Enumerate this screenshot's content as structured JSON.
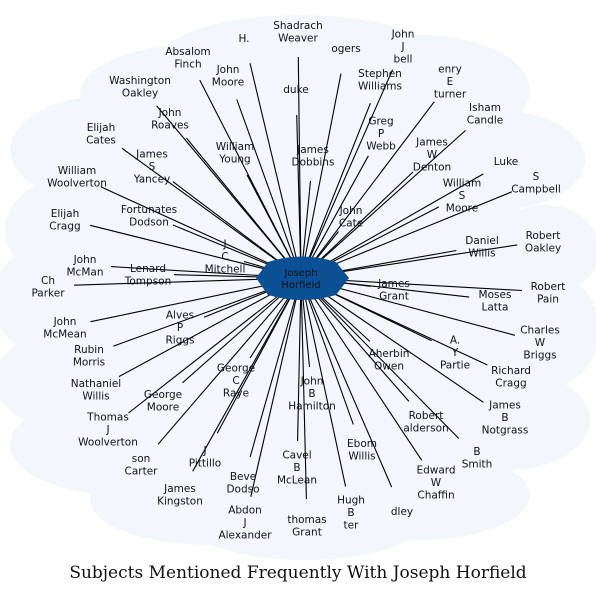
{
  "caption": "Subjects Mentioned Frequently With Joseph Horfield",
  "center": {
    "lines": [
      "Joseph",
      "Horfield"
    ]
  },
  "colors": {
    "hub": "#0b4f95",
    "cloud": "#f3f7fd",
    "edge": "#000000"
  },
  "nodes": [
    {
      "id": "shadrach-weaver",
      "lines": [
        "Shadrach",
        "Weaver"
      ]
    },
    {
      "id": "h",
      "lines": [
        "H."
      ]
    },
    {
      "id": "ogers",
      "lines": [
        "ogers"
      ]
    },
    {
      "id": "john-j-bell",
      "lines": [
        "John",
        "J",
        "bell"
      ]
    },
    {
      "id": "absalom-finch",
      "lines": [
        "Absalom",
        "Finch"
      ]
    },
    {
      "id": "henry-e-turner",
      "lines": [
        "enry",
        "E",
        "turner"
      ]
    },
    {
      "id": "john-moore-1",
      "lines": [
        "John",
        "Moore"
      ]
    },
    {
      "id": "stephen-williams",
      "lines": [
        "Stephen",
        "Williams"
      ]
    },
    {
      "id": "washington-oakley",
      "lines": [
        "Washington",
        "Oakley"
      ]
    },
    {
      "id": "duke",
      "lines": [
        "duke"
      ]
    },
    {
      "id": "isham-candle",
      "lines": [
        "Isham",
        "Candle"
      ]
    },
    {
      "id": "john-roaves",
      "lines": [
        "John",
        "Roaves"
      ]
    },
    {
      "id": "greg-p-webb",
      "lines": [
        "Greg",
        "P",
        "Webb"
      ]
    },
    {
      "id": "elijah-cates",
      "lines": [
        "Elijah",
        "Cates"
      ]
    },
    {
      "id": "william-young",
      "lines": [
        "William",
        "Young"
      ]
    },
    {
      "id": "james-dobbins",
      "lines": [
        "James",
        "Dobbins"
      ]
    },
    {
      "id": "james-w-denton",
      "lines": [
        "James",
        "W",
        "Denton"
      ]
    },
    {
      "id": "luke",
      "lines": [
        "Luke"
      ]
    },
    {
      "id": "james-s-yancey",
      "lines": [
        "James",
        "S",
        "Yancey"
      ]
    },
    {
      "id": "s-campbell",
      "lines": [
        "S",
        "Campbell"
      ]
    },
    {
      "id": "william-woolverton",
      "lines": [
        "William",
        "Woolverton"
      ]
    },
    {
      "id": "william-s-moore",
      "lines": [
        "William",
        "S",
        "Moore"
      ]
    },
    {
      "id": "fortunates-dodson",
      "lines": [
        "Fortunates",
        "Dodson"
      ]
    },
    {
      "id": "john-cate",
      "lines": [
        "John",
        "Cate"
      ]
    },
    {
      "id": "elijah-cragg",
      "lines": [
        "Elijah",
        "Cragg"
      ]
    },
    {
      "id": "robert-oakley",
      "lines": [
        "Robert",
        "Oakley"
      ]
    },
    {
      "id": "daniel-willis",
      "lines": [
        "Daniel",
        "Willis"
      ]
    },
    {
      "id": "j-c-mitchell",
      "lines": [
        "J",
        "C",
        "Mitchell"
      ]
    },
    {
      "id": "john-mcman",
      "lines": [
        "John",
        "McMan"
      ]
    },
    {
      "id": "lenard-tompson",
      "lines": [
        "Lenard",
        "Tompson"
      ]
    },
    {
      "id": "ch-parker",
      "lines": [
        "Ch",
        "Parker"
      ]
    },
    {
      "id": "james-grant",
      "lines": [
        "James",
        "Grant"
      ]
    },
    {
      "id": "robert-pain",
      "lines": [
        "Robert",
        "Pain"
      ]
    },
    {
      "id": "moses-latta",
      "lines": [
        "Moses",
        "Latta"
      ]
    },
    {
      "id": "alves-p-riggs",
      "lines": [
        "Alves",
        "P",
        "Riggs"
      ]
    },
    {
      "id": "john-mcmean",
      "lines": [
        "John",
        "McMean"
      ]
    },
    {
      "id": "charles-w-briggs",
      "lines": [
        "Charles",
        "W",
        "Briggs"
      ]
    },
    {
      "id": "a-y-partie",
      "lines": [
        "A.",
        "Y",
        "Partie"
      ]
    },
    {
      "id": "rubin-morris",
      "lines": [
        "Rubin",
        "Morris"
      ]
    },
    {
      "id": "aherbin-owen",
      "lines": [
        "Aherbin",
        "Owen"
      ]
    },
    {
      "id": "george-c-raye",
      "lines": [
        "George",
        "C",
        "Raye"
      ]
    },
    {
      "id": "richard-cragg",
      "lines": [
        "Richard",
        "Cragg"
      ]
    },
    {
      "id": "nathaniel-willis",
      "lines": [
        "Nathaniel",
        "Willis"
      ]
    },
    {
      "id": "george-moore",
      "lines": [
        "George",
        "Moore"
      ]
    },
    {
      "id": "john-b-hamilton",
      "lines": [
        "John",
        "B",
        "Hamilton"
      ]
    },
    {
      "id": "james-b-notgrass",
      "lines": [
        "James",
        "B",
        "Notgrass"
      ]
    },
    {
      "id": "thomas-j-woolverton",
      "lines": [
        "Thomas",
        "J",
        "Woolverton"
      ]
    },
    {
      "id": "robert-alderson",
      "lines": [
        "Robert",
        "alderson"
      ]
    },
    {
      "id": "son-carter",
      "lines": [
        "son",
        "Carter"
      ]
    },
    {
      "id": "j-pittillo",
      "lines": [
        "J",
        "Pittillo"
      ]
    },
    {
      "id": "ebom-willis",
      "lines": [
        "Ebom",
        "Willis"
      ]
    },
    {
      "id": "b-smith",
      "lines": [
        "B",
        "Smith"
      ]
    },
    {
      "id": "cavel-b-mclean",
      "lines": [
        "Cavel",
        "B",
        "McLean"
      ]
    },
    {
      "id": "beverly-dodson",
      "lines": [
        "Beve",
        "Dodso"
      ]
    },
    {
      "id": "edward-w-chaffin",
      "lines": [
        "Edward",
        "W",
        "Chaffin"
      ]
    },
    {
      "id": "james-kingston",
      "lines": [
        "James",
        "Kingston"
      ]
    },
    {
      "id": "hugh-b-hunter",
      "lines": [
        "Hugh",
        "B",
        "ter"
      ]
    },
    {
      "id": "bradley",
      "lines": [
        "dley"
      ]
    },
    {
      "id": "abdon-j-alexander",
      "lines": [
        "Abdon",
        "J",
        "Alexander"
      ]
    },
    {
      "id": "thomas-grant",
      "lines": [
        "thomas",
        "Grant"
      ]
    }
  ]
}
